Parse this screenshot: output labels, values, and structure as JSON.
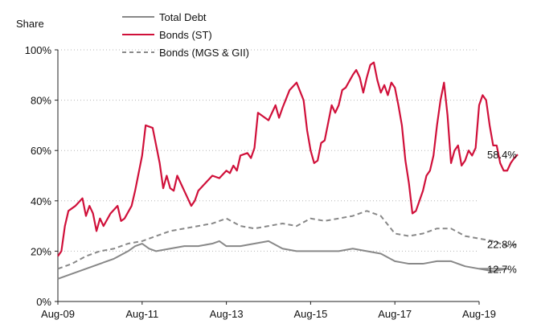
{
  "chart_data": {
    "type": "line",
    "title": "",
    "xlabel": "",
    "ylabel": "Share",
    "ylim": [
      0,
      100
    ],
    "y_ticks": [
      "0%",
      "20%",
      "40%",
      "60%",
      "80%",
      "100%"
    ],
    "x_ticks": [
      "Aug-09",
      "Aug-11",
      "Aug-13",
      "Aug-15",
      "Aug-17",
      "Aug-19"
    ],
    "x_range": [
      "Aug-09",
      "Aug-19"
    ],
    "grid": "horizontal dotted",
    "legend_position": "top-left",
    "series": [
      {
        "name": "Total Debt",
        "color": "#888888",
        "style": "solid",
        "end_label": "12.7%",
        "points": [
          [
            0,
            9
          ],
          [
            4,
            11
          ],
          [
            8,
            13
          ],
          [
            12,
            15
          ],
          [
            16,
            17
          ],
          [
            20,
            20
          ],
          [
            22,
            22
          ],
          [
            24,
            23
          ],
          [
            26,
            21
          ],
          [
            28,
            20
          ],
          [
            32,
            21
          ],
          [
            36,
            22
          ],
          [
            40,
            22
          ],
          [
            44,
            23
          ],
          [
            46,
            24
          ],
          [
            48,
            22
          ],
          [
            52,
            22
          ],
          [
            56,
            23
          ],
          [
            60,
            24
          ],
          [
            64,
            21
          ],
          [
            68,
            20
          ],
          [
            72,
            20
          ],
          [
            76,
            20
          ],
          [
            80,
            20
          ],
          [
            84,
            21
          ],
          [
            88,
            20
          ],
          [
            92,
            19
          ],
          [
            96,
            16
          ],
          [
            100,
            15
          ],
          [
            104,
            15
          ],
          [
            108,
            16
          ],
          [
            112,
            16
          ],
          [
            114,
            15
          ],
          [
            116,
            14
          ],
          [
            120,
            13
          ],
          [
            124,
            12
          ],
          [
            128,
            13
          ],
          [
            120,
            13
          ]
        ]
      },
      {
        "name": "Bonds (ST)",
        "color": "#d0103a",
        "style": "solid",
        "end_label": "58.4%",
        "points": [
          [
            0,
            18
          ],
          [
            1,
            20
          ],
          [
            2,
            30
          ],
          [
            3,
            36
          ],
          [
            5,
            38
          ],
          [
            7,
            41
          ],
          [
            8,
            34
          ],
          [
            9,
            38
          ],
          [
            10,
            35
          ],
          [
            11,
            28
          ],
          [
            12,
            33
          ],
          [
            13,
            30
          ],
          [
            15,
            35
          ],
          [
            17,
            38
          ],
          [
            18,
            32
          ],
          [
            19,
            33
          ],
          [
            21,
            38
          ],
          [
            22,
            44
          ],
          [
            24,
            58
          ],
          [
            25,
            70
          ],
          [
            27,
            69
          ],
          [
            28,
            62
          ],
          [
            29,
            55
          ],
          [
            30,
            45
          ],
          [
            31,
            50
          ],
          [
            32,
            45
          ],
          [
            33,
            44
          ],
          [
            34,
            50
          ],
          [
            35,
            47
          ],
          [
            36,
            44
          ],
          [
            37,
            41
          ],
          [
            38,
            38
          ],
          [
            39,
            40
          ],
          [
            40,
            44
          ],
          [
            42,
            47
          ],
          [
            44,
            50
          ],
          [
            46,
            49
          ],
          [
            48,
            52
          ],
          [
            49,
            51
          ],
          [
            50,
            54
          ],
          [
            51,
            52
          ],
          [
            52,
            58
          ],
          [
            54,
            59
          ],
          [
            55,
            57
          ],
          [
            56,
            61
          ],
          [
            57,
            75
          ],
          [
            59,
            73
          ],
          [
            60,
            72
          ],
          [
            62,
            78
          ],
          [
            63,
            73
          ],
          [
            64,
            77
          ],
          [
            66,
            84
          ],
          [
            68,
            87
          ],
          [
            70,
            80
          ],
          [
            71,
            68
          ],
          [
            72,
            60
          ],
          [
            73,
            55
          ],
          [
            74,
            56
          ],
          [
            75,
            63
          ],
          [
            76,
            64
          ],
          [
            78,
            78
          ],
          [
            79,
            75
          ],
          [
            80,
            78
          ],
          [
            81,
            84
          ],
          [
            82,
            85
          ],
          [
            84,
            90
          ],
          [
            85,
            92
          ],
          [
            86,
            89
          ],
          [
            87,
            83
          ],
          [
            88,
            89
          ],
          [
            89,
            94
          ],
          [
            90,
            95
          ],
          [
            91,
            88
          ],
          [
            92,
            83
          ],
          [
            93,
            86
          ],
          [
            94,
            82
          ],
          [
            95,
            87
          ],
          [
            96,
            85
          ],
          [
            97,
            78
          ],
          [
            98,
            70
          ],
          [
            99,
            56
          ],
          [
            100,
            47
          ],
          [
            101,
            35
          ],
          [
            102,
            36
          ],
          [
            103,
            40
          ],
          [
            104,
            44
          ],
          [
            105,
            50
          ],
          [
            106,
            52
          ],
          [
            107,
            58
          ],
          [
            108,
            70
          ],
          [
            109,
            80
          ],
          [
            110,
            87
          ],
          [
            111,
            74
          ],
          [
            112,
            55
          ],
          [
            113,
            60
          ],
          [
            114,
            62
          ],
          [
            115,
            54
          ],
          [
            116,
            56
          ],
          [
            117,
            60
          ],
          [
            118,
            58
          ],
          [
            119,
            61
          ],
          [
            120,
            78
          ],
          [
            121,
            82
          ],
          [
            122,
            80
          ],
          [
            123,
            70
          ],
          [
            124,
            62
          ],
          [
            125,
            62
          ],
          [
            126,
            55
          ],
          [
            127,
            52
          ],
          [
            128,
            52
          ],
          [
            129,
            55
          ],
          [
            130,
            57
          ],
          [
            131,
            58.4
          ]
        ]
      },
      {
        "name": "Bonds (MGS & GII)",
        "color": "#888888",
        "style": "dashed",
        "end_label": "22.8%",
        "points": [
          [
            0,
            13
          ],
          [
            4,
            15
          ],
          [
            8,
            18
          ],
          [
            12,
            20
          ],
          [
            16,
            21
          ],
          [
            20,
            23
          ],
          [
            24,
            24
          ],
          [
            28,
            26
          ],
          [
            32,
            28
          ],
          [
            36,
            29
          ],
          [
            40,
            30
          ],
          [
            44,
            31
          ],
          [
            48,
            33
          ],
          [
            52,
            30
          ],
          [
            56,
            29
          ],
          [
            60,
            30
          ],
          [
            64,
            31
          ],
          [
            68,
            30
          ],
          [
            72,
            33
          ],
          [
            76,
            32
          ],
          [
            80,
            33
          ],
          [
            84,
            34
          ],
          [
            88,
            36
          ],
          [
            92,
            34
          ],
          [
            96,
            27
          ],
          [
            100,
            26
          ],
          [
            104,
            27
          ],
          [
            108,
            29
          ],
          [
            112,
            29
          ],
          [
            116,
            26
          ],
          [
            120,
            25
          ],
          [
            124,
            24
          ],
          [
            128,
            22
          ],
          [
            131,
            22.8
          ]
        ]
      }
    ]
  }
}
